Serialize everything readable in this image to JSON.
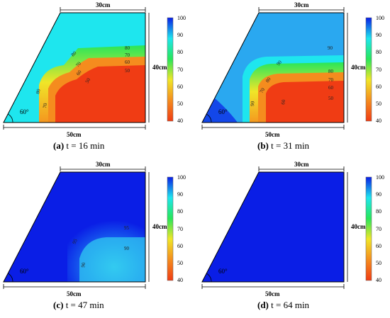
{
  "colors": {
    "blue": "#0a1ee6",
    "cyan": "#1ee6ee",
    "green": "#28e65a",
    "yellow": "#f0e628",
    "orange": "#f58c1e",
    "red": "#f03c14"
  },
  "colorbar": {
    "ticks": [
      "100",
      "90",
      "80",
      "70",
      "60",
      "50",
      "40"
    ]
  },
  "dimensions": {
    "top": "30cm",
    "right": "40cm",
    "bottom": "50cm",
    "angle": "60°"
  },
  "panels": [
    {
      "letter": "(a)",
      "caption": " t = 16 min",
      "contours": [
        "80",
        "70",
        "60",
        "50",
        "80",
        "70",
        "60",
        "50",
        "80",
        "70"
      ]
    },
    {
      "letter": "(b)",
      "caption": " t = 31 min",
      "contours": [
        "90",
        "80",
        "70",
        "60",
        "50",
        "90",
        "80",
        "70",
        "90",
        "60"
      ]
    },
    {
      "letter": "(c)",
      "caption": " t = 47 min",
      "contours": [
        "95",
        "90",
        "95",
        "90"
      ]
    },
    {
      "letter": "(d)",
      "caption": " t = 64 min",
      "contours": []
    }
  ]
}
